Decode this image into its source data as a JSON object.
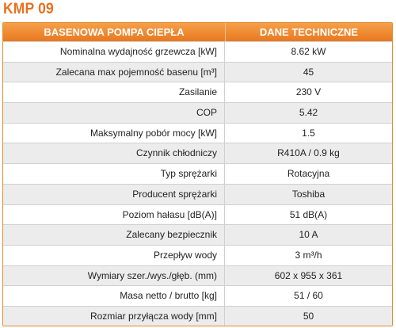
{
  "title": "KMP 09",
  "table": {
    "headers": [
      "BASENOWA POMPA CIEPŁA",
      "DANE TECHNICZNE"
    ],
    "rows": [
      {
        "label": "Nominalna wydajność grzewcza [kW]",
        "value": "8.62 kW"
      },
      {
        "label": "Zalecana max pojemność basenu [m³]",
        "value": "45"
      },
      {
        "label": "Zasilanie",
        "value": "230 V"
      },
      {
        "label": "COP",
        "value": "5.42"
      },
      {
        "label": "Maksymalny pobór mocy [kW]",
        "value": "1.5"
      },
      {
        "label": "Czynnik chłodniczy",
        "value": "R410A / 0.9 kg"
      },
      {
        "label": "Typ sprężarki",
        "value": "Rotacyjna"
      },
      {
        "label": "Producent sprężarki",
        "value": "Toshiba"
      },
      {
        "label": "Poziom hałasu [dB(A)]",
        "value": "51 dB(A)"
      },
      {
        "label": "Zalecany bezpiecznik",
        "value": "10 A"
      },
      {
        "label": "Przepływ wody",
        "value": "3 m³/h"
      },
      {
        "label": "Wymiary szer./wys./głęb. (mm)",
        "value": "602 x 955 x 361"
      },
      {
        "label": "Masa netto / brutto [kg]",
        "value": "51 / 60"
      },
      {
        "label": "Rozmiar przyłącza wody [mm]",
        "value": "50"
      }
    ]
  }
}
